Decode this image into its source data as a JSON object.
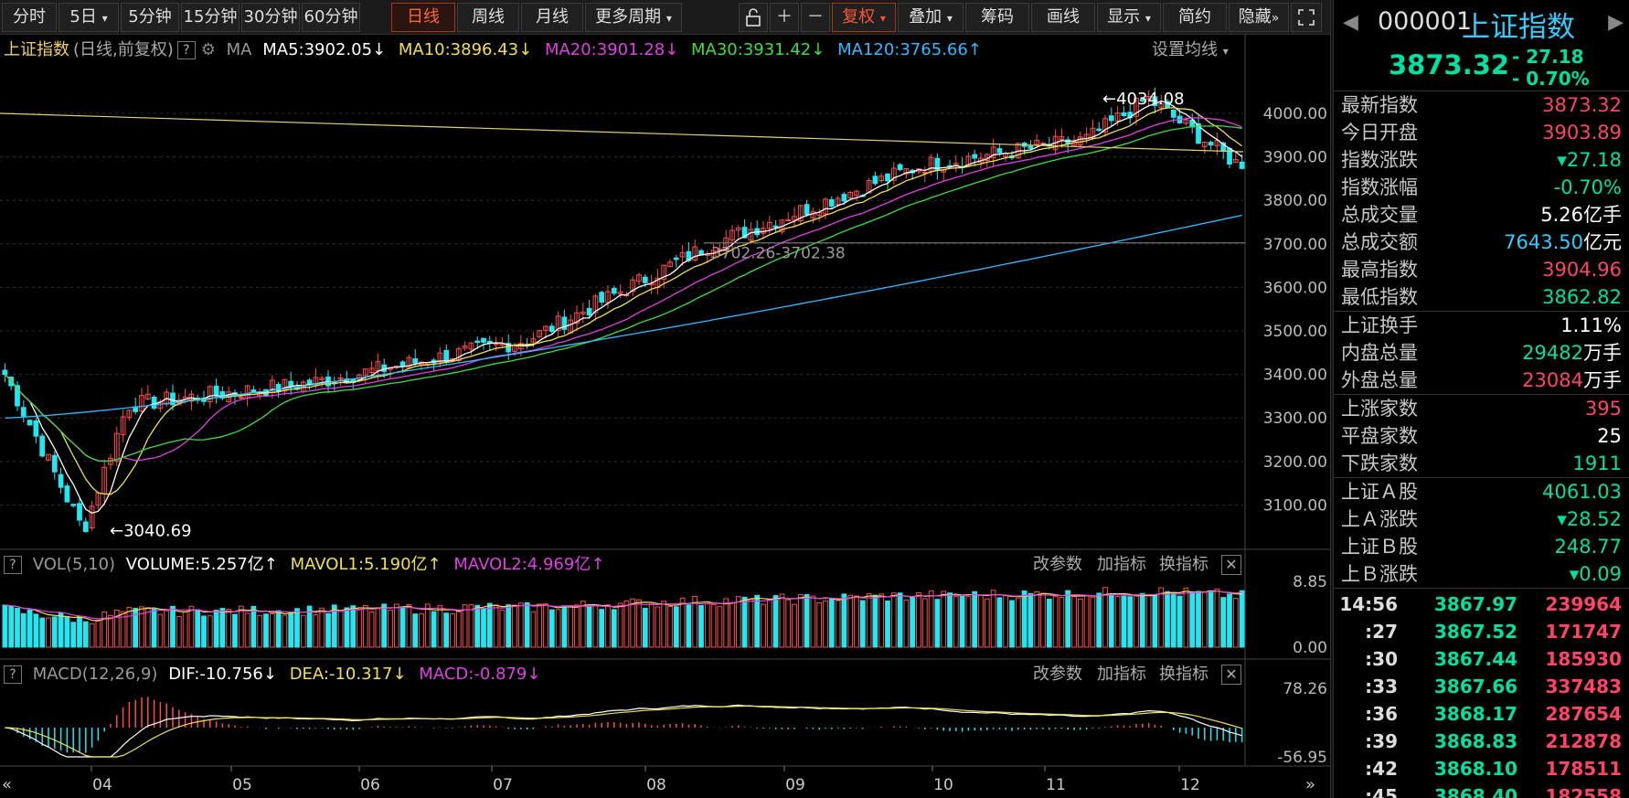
{
  "toolbar": {
    "tabs": [
      "分时",
      "5日",
      "5分钟",
      "15分钟",
      "30分钟",
      "60分钟",
      "日线",
      "周线",
      "月线",
      "更多周期"
    ],
    "active_tab": "日线",
    "tools": [
      "复权",
      "叠加",
      "筹码",
      "画线",
      "显示",
      "简约",
      "隐藏"
    ]
  },
  "legend": {
    "name": "上证指数",
    "sub": "(日线,前复权)",
    "ma_label": "MA",
    "ma5": "MA5:3902.05",
    "ma10": "MA10:3896.43",
    "ma20": "MA20:3901.28",
    "ma30": "MA30:3931.42",
    "ma120": "MA120:3765.66",
    "settings": "设置均线"
  },
  "main_chart": {
    "y_ticks": [
      "4000.00",
      "3900.00",
      "3800.00",
      "3700.00",
      "3600.00",
      "3500.00",
      "3400.00",
      "3300.00",
      "3200.00",
      "3100.00"
    ],
    "high_label": "4034.08",
    "low_label": "3040.69",
    "crosshair_label": "3702.26-3702.38"
  },
  "vol_panel": {
    "name": "VOL(5,10)",
    "volume": "VOLUME:5.257亿",
    "mavol1": "MAVOL1:5.190亿",
    "mavol2": "MAVOL2:4.969亿",
    "top_tick": "8.85",
    "bottom_tick": "0.00",
    "actions": [
      "改参数",
      "加指标",
      "换指标"
    ]
  },
  "macd_panel": {
    "name": "MACD(12,26,9)",
    "dif": "DIF:-10.756",
    "dea": "DEA:-10.317",
    "macd": "MACD:-0.879",
    "top_tick": "78.26",
    "bottom_tick": "-56.95",
    "actions": [
      "改参数",
      "加指标",
      "换指标"
    ]
  },
  "x_axis": [
    "04",
    "05",
    "06",
    "07",
    "08",
    "09",
    "10",
    "11",
    "12"
  ],
  "sidebar": {
    "code": "000001",
    "name": "上证指数",
    "price": "3873.32",
    "change": "- 27.18",
    "change_pct": "- 0.70%",
    "rows1": [
      {
        "label": "最新指数",
        "value": "3873.32",
        "unit": "",
        "color": "#ff4466"
      },
      {
        "label": "今日开盘",
        "value": "3903.89",
        "unit": "",
        "color": "#ff4466"
      },
      {
        "label": "指数涨跌",
        "value": "▾27.18",
        "unit": "",
        "color": "#00e0a0"
      },
      {
        "label": "指数涨幅",
        "value": "-0.70%",
        "unit": "",
        "color": "#00e0a0"
      },
      {
        "label": "总成交量",
        "value": "5.26",
        "unit": "亿手",
        "color": "#ffffff"
      },
      {
        "label": "总成交额",
        "value": "7643.50",
        "unit": "亿元",
        "color": "#33ccff"
      },
      {
        "label": "最高指数",
        "value": "3904.96",
        "unit": "",
        "color": "#ff4466"
      },
      {
        "label": "最低指数",
        "value": "3862.82",
        "unit": "",
        "color": "#00e0a0"
      }
    ],
    "rows2": [
      {
        "label": "上证换手",
        "value": "1.11%",
        "unit": "",
        "color": "#ffffff"
      },
      {
        "label": "内盘总量",
        "value": "29482",
        "unit": "万手",
        "color": "#00e0a0"
      },
      {
        "label": "外盘总量",
        "value": "23084",
        "unit": "万手",
        "color": "#ff4466"
      }
    ],
    "rows3": [
      {
        "label": "上涨家数",
        "value": "395",
        "unit": "",
        "color": "#ff4466"
      },
      {
        "label": "平盘家数",
        "value": "25",
        "unit": "",
        "color": "#ffffff"
      },
      {
        "label": "下跌家数",
        "value": "1911",
        "unit": "",
        "color": "#00e0a0"
      }
    ],
    "rows4": [
      {
        "label": "上证Ａ股",
        "value": "4061.03",
        "unit": "",
        "color": "#00e0a0"
      },
      {
        "label": "上Ａ涨跌",
        "value": "▾28.52",
        "unit": "",
        "color": "#00e0a0"
      },
      {
        "label": "上证Ｂ股",
        "value": "248.77",
        "unit": "",
        "color": "#00e0a0"
      },
      {
        "label": "上Ｂ涨跌",
        "value": "▾0.09",
        "unit": "",
        "color": "#00e0a0"
      }
    ],
    "ticks": [
      {
        "time": "14:56",
        "price": "3867.97",
        "vol": "239964"
      },
      {
        "time": ":27",
        "price": "3867.52",
        "vol": "171747"
      },
      {
        "time": ":30",
        "price": "3867.44",
        "vol": "185930"
      },
      {
        "time": ":33",
        "price": "3867.66",
        "vol": "337483"
      },
      {
        "time": ":36",
        "price": "3868.17",
        "vol": "287654"
      },
      {
        "time": ":39",
        "price": "3868.83",
        "vol": "212878"
      },
      {
        "time": ":42",
        "price": "3868.10",
        "vol": "178511"
      },
      {
        "time": ":45",
        "price": "3868.40",
        "vol": "182558"
      }
    ]
  },
  "chart_data": {
    "type": "candlestick",
    "x": [
      "04",
      "05",
      "06",
      "07",
      "08",
      "09",
      "10",
      "11",
      "12"
    ],
    "anchors": [
      {
        "x": "04",
        "close": 3400
      },
      {
        "x": "04",
        "close": 3040.69
      },
      {
        "x": "05",
        "close": 3330
      },
      {
        "x": "06",
        "close": 3380
      },
      {
        "x": "07",
        "close": 3480
      },
      {
        "x": "08",
        "close": 3700
      },
      {
        "x": "09",
        "close": 3880
      },
      {
        "x": "10",
        "close": 3940
      },
      {
        "x": "11",
        "close": 4034.08
      },
      {
        "x": "12",
        "close": 3873.32
      }
    ],
    "ma120": {
      "start": 3300,
      "end": 3765.66
    },
    "ylim": [
      3040,
      4060
    ],
    "colors": {
      "up": "#ff4b4b",
      "down": "#22e6f0",
      "ma5": "#ffffff",
      "ma10": "#f0e050",
      "ma20": "#e040e0",
      "ma30": "#40dd40",
      "ma120": "#33bbff"
    }
  }
}
